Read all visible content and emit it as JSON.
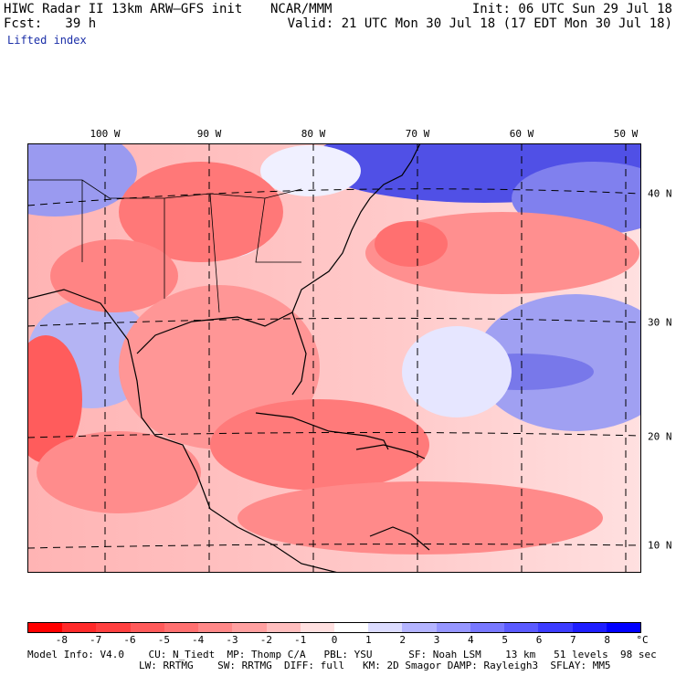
{
  "header": {
    "model_title": "HIWC Radar II 13km ARW–GFS init",
    "org": "NCAR/MMM",
    "init": "Init: 06 UTC Sun 29 Jul 18",
    "fcst": "Fcst:   39 h",
    "valid": "Valid: 21 UTC Mon 30 Jul 18 (17 EDT Mon 30 Jul 18)",
    "field": "Lifted index"
  },
  "map": {
    "lon_labels": [
      "100 W",
      "90 W",
      "80 W",
      "70 W",
      "60 W",
      "50 W"
    ],
    "lat_labels": [
      "40 N",
      "30 N",
      "20 N",
      "10 N"
    ]
  },
  "colorbar": {
    "labels": [
      "-8",
      "-7",
      "-6",
      "-5",
      "-4",
      "-3",
      "-2",
      "-1",
      "0",
      "1",
      "2",
      "3",
      "4",
      "5",
      "6",
      "7",
      "8"
    ],
    "unit": "°C",
    "colors": [
      "#ff0000",
      "#ff2a2a",
      "#ff4040",
      "#ff5a5a",
      "#ff7070",
      "#ff8888",
      "#ffa0a0",
      "#ffbebe",
      "#ffe0e0",
      "#ffffff",
      "#dcdcff",
      "#b4b4ff",
      "#9696ff",
      "#7878ff",
      "#5a5aff",
      "#3c3cff",
      "#1e1eff",
      "#0000ff"
    ]
  },
  "footer": {
    "line1": "Model Info: V4.0    CU: N_Tiedt  MP: Thomp C/A   PBL: YSU      SF: Noah LSM    13 km   51 levels  98 sec",
    "line2": "LW: RRTMG    SW: RRTMG  DIFF: full   KM: 2D Smagor DAMP: Rayleigh3  SFLAY: MM5"
  }
}
